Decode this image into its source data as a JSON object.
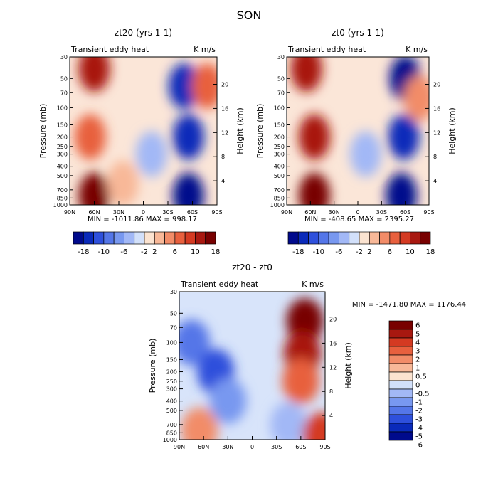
{
  "figure": {
    "season": "SON",
    "transient_label": "Transient eddy heat",
    "units": "K m/s",
    "pressure_label": "Pressure (mb)",
    "height_label": "Height (km)"
  },
  "colors": {
    "cool_to_warm": [
      "#000a8c",
      "#0a2aba",
      "#2e50dc",
      "#5476e8",
      "#7898f0",
      "#a2b8f6",
      "#d2e0fa",
      "#fbe3d0",
      "#f8b898",
      "#f28c68",
      "#e8603e",
      "#d43a22",
      "#a81810",
      "#780000"
    ]
  },
  "chart_data": [
    {
      "id": "zt20",
      "type": "contour",
      "title": "zt20 (yrs 1-1)",
      "stats": "MIN = -1011.86   MAX = 998.17",
      "xlabel": "",
      "ylabel": "Pressure (mb)",
      "y2label": "Height (km)",
      "x_ticks": [
        "90N",
        "60N",
        "30N",
        "0",
        "30S",
        "60S",
        "90S"
      ],
      "y_ticks": [
        "30",
        "50",
        "70",
        "100",
        "150",
        "200",
        "250",
        "300",
        "400",
        "500",
        "700",
        "850",
        "1000"
      ],
      "y2_ticks": [
        "20",
        "16",
        "12",
        "8",
        "4"
      ],
      "colorbar_orientation": "horizontal",
      "colorbar_labels": [
        "-18",
        "-10",
        "-6",
        "-2",
        "2",
        "6",
        "10",
        "18"
      ],
      "field": [
        {
          "x": 60,
          "p": 40,
          "v": 14
        },
        {
          "x": 65,
          "p": 200,
          "v": 9
        },
        {
          "x": 60,
          "p": 800,
          "v": 18
        },
        {
          "x": 25,
          "p": 600,
          "v": 5
        },
        {
          "x": -50,
          "p": 60,
          "v": -14
        },
        {
          "x": -55,
          "p": 200,
          "v": -16
        },
        {
          "x": -55,
          "p": 800,
          "v": -18
        },
        {
          "x": -78,
          "p": 60,
          "v": 10
        },
        {
          "x": -10,
          "p": 300,
          "v": -3
        }
      ]
    },
    {
      "id": "zt0",
      "type": "contour",
      "title": "zt0 (yrs 1-1)",
      "stats": "MIN = -408.65   MAX = 2395.27",
      "xlabel": "",
      "ylabel": "Pressure (mb)",
      "y2label": "Height (km)",
      "x_ticks": [
        "90N",
        "60N",
        "30N",
        "0",
        "30S",
        "60S",
        "90S"
      ],
      "y_ticks": [
        "30",
        "50",
        "70",
        "100",
        "150",
        "200",
        "250",
        "300",
        "400",
        "500",
        "700",
        "850",
        "1000"
      ],
      "y2_ticks": [
        "20",
        "16",
        "12",
        "8",
        "4"
      ],
      "colorbar_orientation": "horizontal",
      "colorbar_labels": [
        "-18",
        "-10",
        "-6",
        "-2",
        "2",
        "6",
        "10",
        "18"
      ],
      "field": [
        {
          "x": 65,
          "p": 40,
          "v": 16
        },
        {
          "x": 55,
          "p": 200,
          "v": 14
        },
        {
          "x": 55,
          "p": 800,
          "v": 18
        },
        {
          "x": -60,
          "p": 50,
          "v": -18
        },
        {
          "x": -58,
          "p": 200,
          "v": -16
        },
        {
          "x": -55,
          "p": 800,
          "v": -18
        },
        {
          "x": -78,
          "p": 80,
          "v": 6
        },
        {
          "x": -10,
          "p": 300,
          "v": -3
        }
      ]
    },
    {
      "id": "diff",
      "type": "contour",
      "title": "zt20 - zt0",
      "stats": "MIN = -1471.80   MAX = 1176.44",
      "xlabel": "",
      "ylabel": "Pressure (mb)",
      "y2label": "Height (km)",
      "x_ticks": [
        "90N",
        "60N",
        "30N",
        "0",
        "30S",
        "60S",
        "90S"
      ],
      "y_ticks": [
        "30",
        "50",
        "70",
        "100",
        "150",
        "200",
        "250",
        "300",
        "400",
        "500",
        "700",
        "850",
        "1000"
      ],
      "y2_ticks": [
        "20",
        "16",
        "12",
        "8",
        "4"
      ],
      "colorbar_orientation": "vertical",
      "colorbar_labels": [
        "6",
        "5",
        "4",
        "3",
        "2",
        "1",
        "0.5",
        "0",
        "-0.5",
        "-1",
        "-2",
        "-3",
        "-4",
        "-5",
        "-6"
      ],
      "field": [
        {
          "x": -65,
          "p": 60,
          "v": 7
        },
        {
          "x": -62,
          "p": 130,
          "v": 5
        },
        {
          "x": -60,
          "p": 250,
          "v": 3
        },
        {
          "x": 75,
          "p": 100,
          "v": -3
        },
        {
          "x": 45,
          "p": 200,
          "v": -4
        },
        {
          "x": 65,
          "p": 800,
          "v": 2
        },
        {
          "x": 30,
          "p": 400,
          "v": -2
        },
        {
          "x": -45,
          "p": 700,
          "v": -1.5
        },
        {
          "x": -85,
          "p": 900,
          "v": 4
        }
      ]
    }
  ]
}
